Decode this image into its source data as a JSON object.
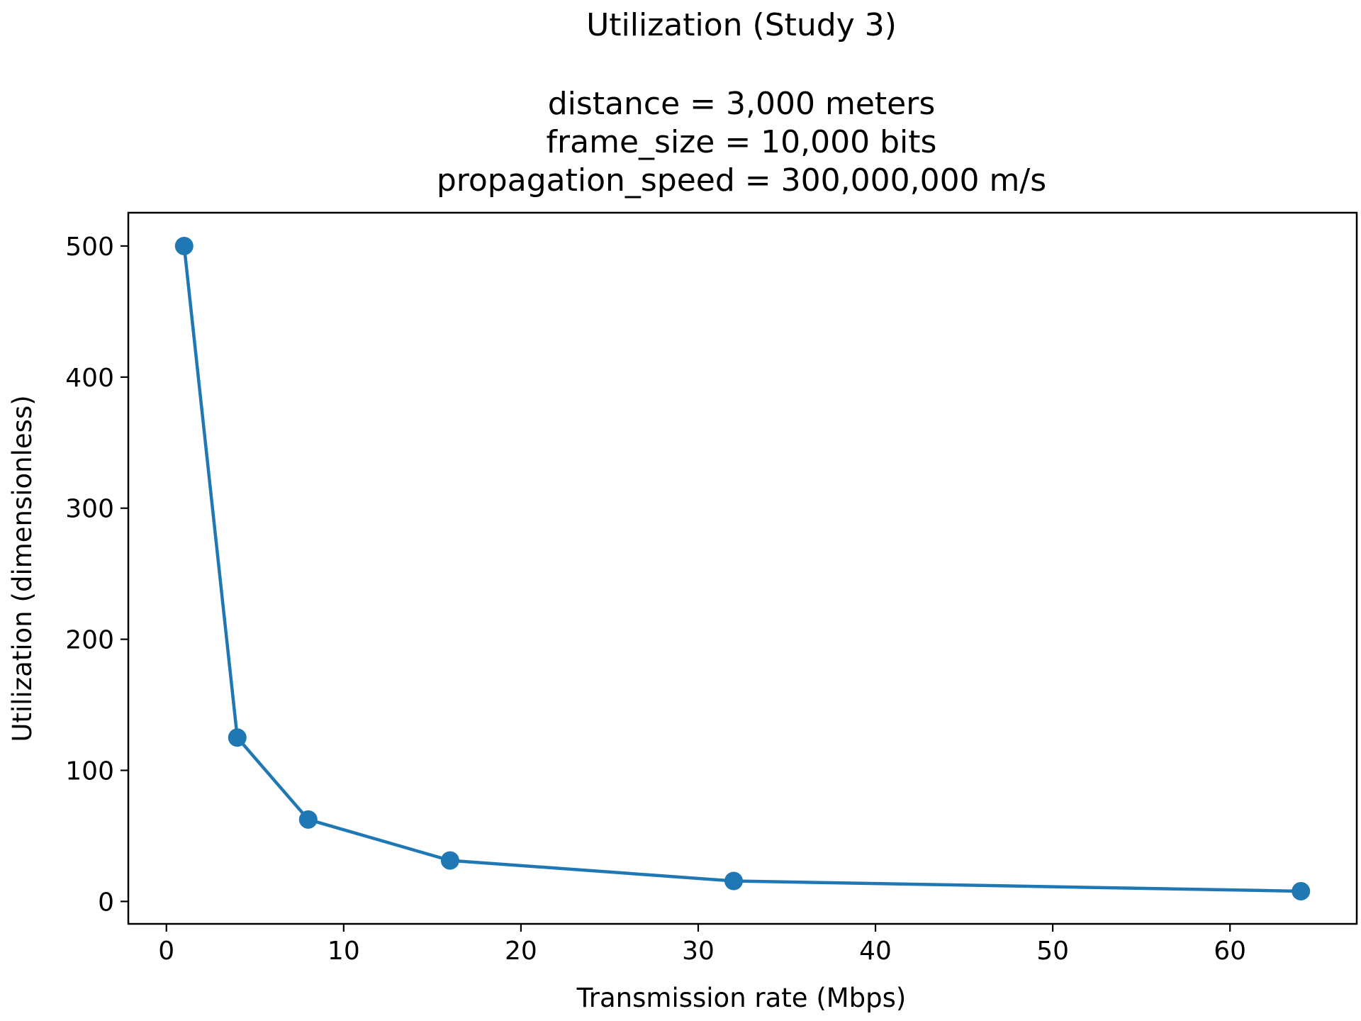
{
  "chart_data": {
    "type": "line",
    "title": "Utilization (Study 3)",
    "subtitle_lines": [
      "distance = 3,000 meters",
      "frame_size = 10,000 bits",
      "propagation_speed = 300,000,000 m/s"
    ],
    "xlabel": "Transmission rate (Mbps)",
    "ylabel": "Utilization (dimensionless)",
    "xlim": [
      -2.15,
      67.15
    ],
    "ylim": [
      -17.1,
      525.4
    ],
    "xticks": [
      0,
      10,
      20,
      30,
      40,
      50,
      60
    ],
    "yticks": [
      0,
      100,
      200,
      300,
      400,
      500
    ],
    "grid": false,
    "legend": "none",
    "marker": "circle",
    "series": [
      {
        "x": [
          1,
          4,
          8,
          16,
          32,
          64
        ],
        "y": [
          500,
          125,
          62.5,
          31.25,
          15.625,
          7.8125
        ],
        "color": "#1f77b4"
      }
    ]
  }
}
